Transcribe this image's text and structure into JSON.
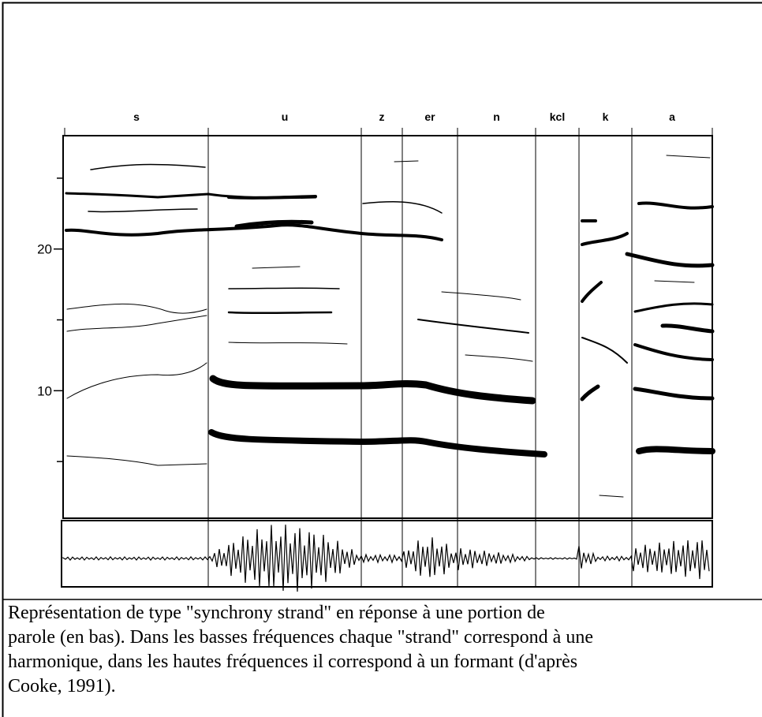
{
  "figure": {
    "segments": [
      "s",
      "u",
      "z",
      "er",
      "n",
      "kcl",
      "k",
      "a"
    ],
    "ylim": [
      1,
      28
    ],
    "yticks": [
      10,
      20
    ],
    "yminorticks": [
      5,
      15,
      25
    ]
  },
  "caption": [
    "Représentation de type \"synchrony strand\" en réponse à une portion de",
    "parole (en bas). Dans les basses fréquences chaque \"strand\" correspond à une",
    "harmonique, dans les hautes fréquences il correspond à un formant (d'après",
    "Cooke, 1991)."
  ]
}
